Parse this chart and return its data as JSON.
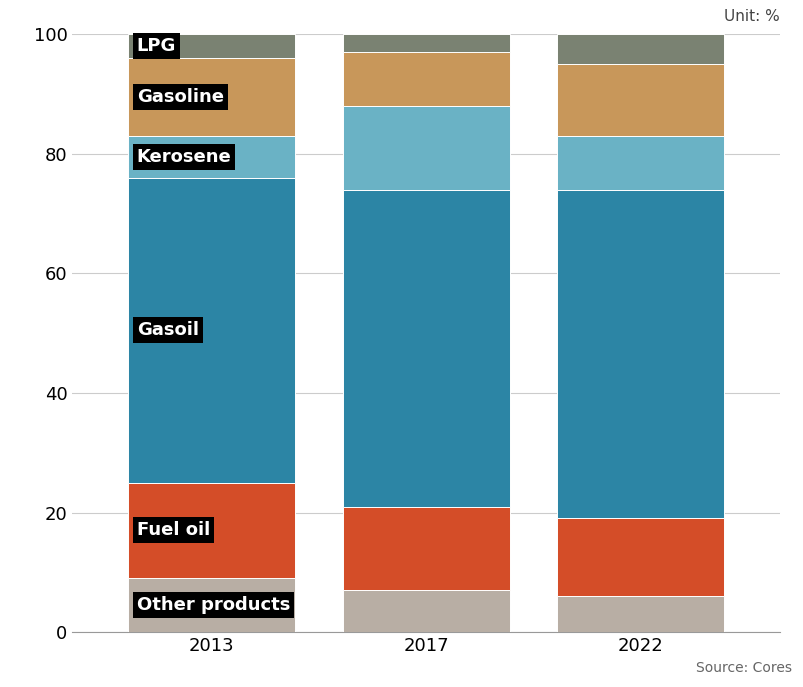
{
  "years": [
    "2013",
    "2017",
    "2022"
  ],
  "segments": [
    {
      "label": "Other products",
      "color": "#b8aea4",
      "values": [
        9.0,
        7.0,
        6.0
      ]
    },
    {
      "label": "Fuel oil",
      "color": "#d44d28",
      "values": [
        16.0,
        14.0,
        13.0
      ]
    },
    {
      "label": "Gasoil",
      "color": "#2c85a5",
      "values": [
        51.0,
        53.0,
        55.0
      ]
    },
    {
      "label": "Kerosene",
      "color": "#6ab2c5",
      "values": [
        7.0,
        14.0,
        9.0
      ]
    },
    {
      "label": "Gasoline",
      "color": "#c8975a",
      "values": [
        13.0,
        9.0,
        12.0
      ]
    },
    {
      "label": "LPG",
      "color": "#7a8272",
      "values": [
        4.0,
        3.0,
        5.0
      ]
    }
  ],
  "unit_text": "Unit: %",
  "source_text": "Source: Cores",
  "ylim": [
    0,
    100
  ],
  "yticks": [
    0,
    20,
    40,
    60,
    80,
    100
  ],
  "bar_width": 0.78,
  "tick_fontsize": 13,
  "label_fontsize": 13,
  "grid_color": "#cccccc",
  "label_color": "white",
  "label_bg_color": "black"
}
